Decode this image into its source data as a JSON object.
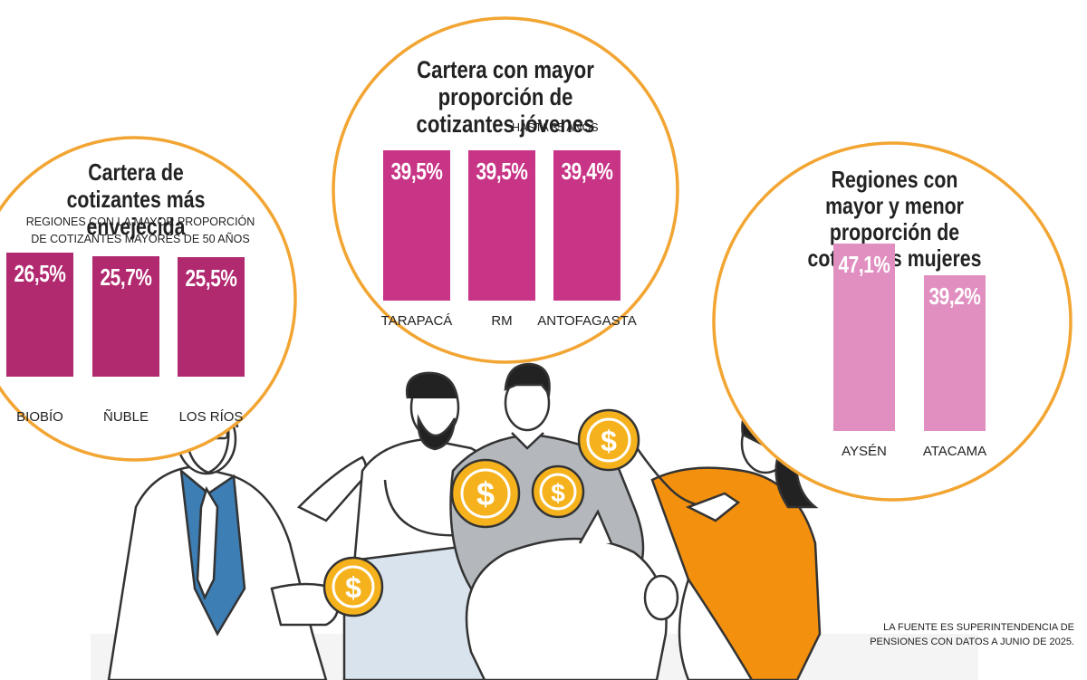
{
  "palette": {
    "ring": "#f2a532",
    "bar_old": "#b1296f",
    "bar_young": "#c83486",
    "bar_women": "#e08fc0",
    "coin": "#f5b21c",
    "orange_shirt": "#f3900d",
    "blue_tie": "#3d7eb5",
    "gray_shirt": "#b4b8bd"
  },
  "chart_data": [
    {
      "type": "bar",
      "title": "Cartera de cotizantes más envejecida",
      "subtitle": "REGIONES CON LA MAYOR PROPORCIÓN DE COTIZANTES MAYORES DE 50 AÑOS",
      "categories": [
        "BIOBÍO",
        "ÑUBLE",
        "LOS RÍOS"
      ],
      "values": [
        26.5,
        25.7,
        25.5
      ],
      "labels": [
        "26,5%",
        "25,7%",
        "25,5%"
      ],
      "ylim": [
        0,
        30
      ]
    },
    {
      "type": "bar",
      "title": "Cartera con mayor proporción de cotizantes jóvenes",
      "subtitle": "HASTA 35 AÑOS",
      "categories": [
        "TARAPACÁ",
        "RM",
        "ANTOFAGASTA"
      ],
      "values": [
        39.5,
        39.5,
        39.4
      ],
      "labels": [
        "39,5%",
        "39,5%",
        "39,4%"
      ],
      "ylim": [
        0,
        40
      ]
    },
    {
      "type": "bar",
      "title": "Regiones con mayor y menor proporción de cotizantes mujeres",
      "subtitle": "",
      "categories": [
        "AYSÉN",
        "ATACAMA"
      ],
      "values": [
        47.1,
        39.2
      ],
      "labels": [
        "47,1%",
        "39,2%"
      ],
      "ylim": [
        0,
        50
      ]
    }
  ],
  "footer": {
    "source_line1": "LA FUENTE ES SUPERINTENDENCIA DE",
    "source_line2": "PENSIONES CON DATOS A JUNIO DE 2025."
  },
  "icons": [
    "dollar-coin-icon",
    "piggy-bank-icon"
  ]
}
